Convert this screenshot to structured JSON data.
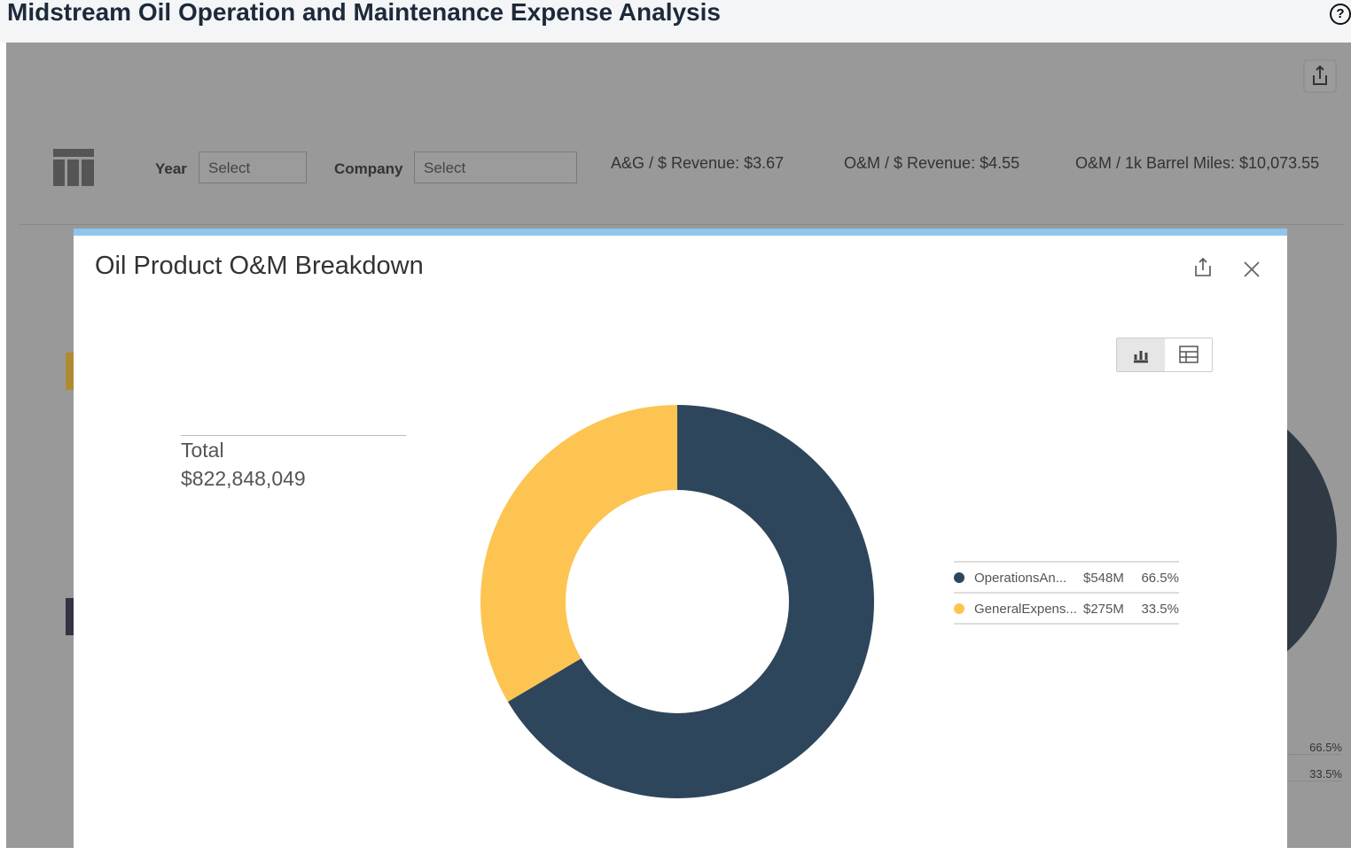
{
  "header": {
    "title": "Midstream Oil Operation and Maintenance Expense Analysis"
  },
  "filters": [
    {
      "label": "Year",
      "value": "Select"
    },
    {
      "label": "Company",
      "value": "Select"
    }
  ],
  "kpis": [
    "A&G / $ Revenue: $3.67",
    "O&M / $ Revenue: $4.55",
    "O&M / 1k Barrel Miles: $10,073.55"
  ],
  "background": {
    "percent_labels": [
      "66.5%",
      "33.5%"
    ]
  },
  "modal": {
    "title": "Oil Product O&M Breakdown",
    "total_label": "Total",
    "total_value": "$822,848,049",
    "chart_data": {
      "type": "donut",
      "categories": [
        "OperationsAn...",
        "GeneralExpens..."
      ],
      "values": [
        66.5,
        33.5
      ],
      "value_labels": [
        "66.5%",
        "33.5%"
      ],
      "amount_labels": [
        "$548M",
        "$275M"
      ],
      "colors": [
        "#2d465c",
        "#fdc451"
      ]
    }
  }
}
